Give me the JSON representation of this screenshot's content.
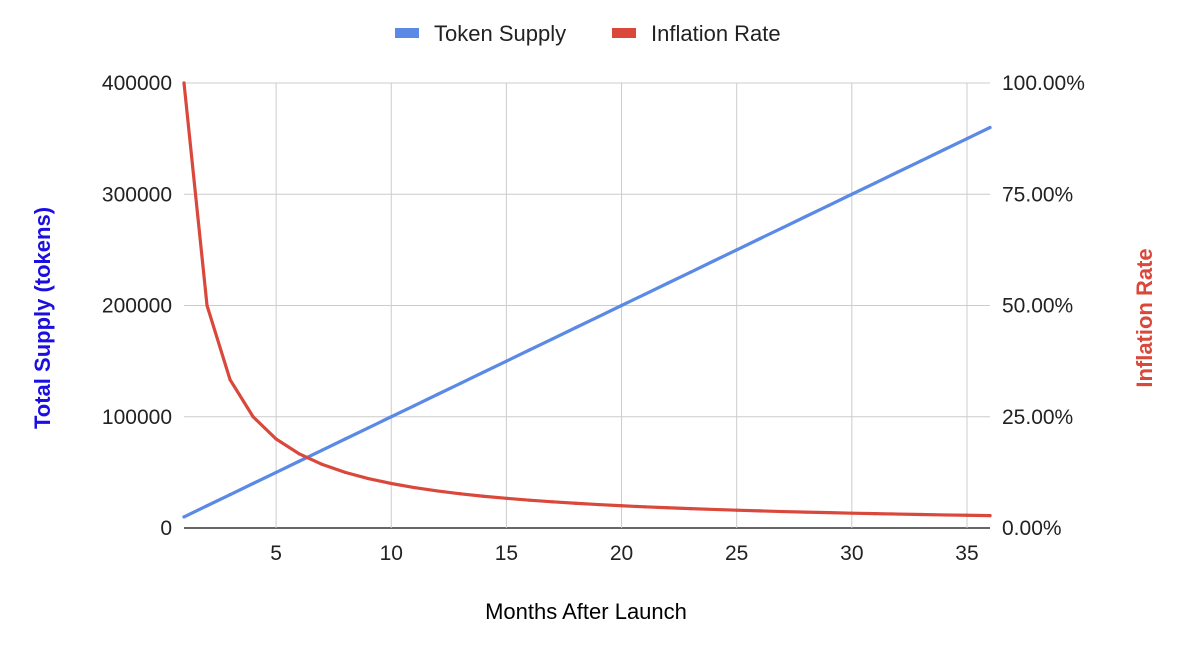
{
  "chart_data": {
    "type": "line",
    "title": "",
    "xlabel": "Months After Launch",
    "ylabel_left": "Total Supply (tokens)",
    "ylabel_right": "Inflation Rate",
    "xlim": [
      1,
      36
    ],
    "ylim_left": [
      0,
      400000
    ],
    "ylim_right": [
      0,
      1
    ],
    "x_ticks": [
      "5",
      "10",
      "15",
      "20",
      "25",
      "30",
      "35"
    ],
    "x_tick_values": [
      5,
      10,
      15,
      20,
      25,
      30,
      35
    ],
    "y_left_ticks": [
      "0",
      "100000",
      "200000",
      "300000",
      "400000"
    ],
    "y_left_tick_values": [
      0,
      100000,
      200000,
      300000,
      400000
    ],
    "y_right_ticks": [
      "0.00%",
      "25.00%",
      "50.00%",
      "75.00%",
      "100.00%"
    ],
    "y_right_tick_values": [
      0,
      0.25,
      0.5,
      0.75,
      1
    ],
    "grid": true,
    "legend_position": "top",
    "x": [
      1,
      2,
      3,
      4,
      5,
      6,
      7,
      8,
      9,
      10,
      11,
      12,
      13,
      14,
      15,
      16,
      17,
      18,
      19,
      20,
      21,
      22,
      23,
      24,
      25,
      26,
      27,
      28,
      29,
      30,
      31,
      32,
      33,
      34,
      35,
      36
    ],
    "series": [
      {
        "name": "Token Supply",
        "axis": "left",
        "color": "#5a8ae6",
        "values": [
          10000,
          20000,
          30000,
          40000,
          50000,
          60000,
          70000,
          80000,
          90000,
          100000,
          110000,
          120000,
          130000,
          140000,
          150000,
          160000,
          170000,
          180000,
          190000,
          200000,
          210000,
          220000,
          230000,
          240000,
          250000,
          260000,
          270000,
          280000,
          290000,
          300000,
          310000,
          320000,
          330000,
          340000,
          350000,
          360000
        ]
      },
      {
        "name": "Inflation Rate",
        "axis": "right",
        "color": "#d9483b",
        "values": [
          1.0,
          0.5,
          0.3333,
          0.25,
          0.2,
          0.1667,
          0.1429,
          0.125,
          0.1111,
          0.1,
          0.0909,
          0.0833,
          0.0769,
          0.0714,
          0.0667,
          0.0625,
          0.0588,
          0.0556,
          0.0526,
          0.05,
          0.0476,
          0.0455,
          0.0435,
          0.0417,
          0.04,
          0.0385,
          0.037,
          0.0357,
          0.0345,
          0.0333,
          0.0323,
          0.0313,
          0.0303,
          0.0294,
          0.0286,
          0.0278
        ]
      }
    ],
    "colors": {
      "left_axis_title": "#1a0fe0",
      "right_axis_title": "#d9483b",
      "grid": "#cccccc",
      "baseline": "#333333"
    }
  }
}
